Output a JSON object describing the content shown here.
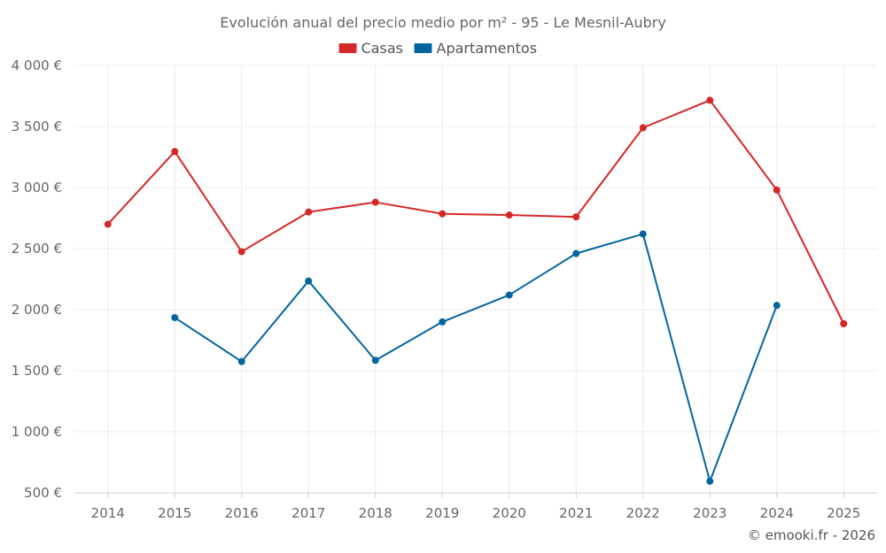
{
  "chart_data": {
    "type": "line",
    "title": "Evolución anual del precio medio por m² - 95 - Le Mesnil-Aubry",
    "categories": [
      "2014",
      "2015",
      "2016",
      "2017",
      "2018",
      "2019",
      "2020",
      "2021",
      "2022",
      "2023",
      "2024",
      "2025"
    ],
    "series": [
      {
        "name": "Casas",
        "color": "#d62728",
        "values": [
          2700,
          3295,
          2475,
          2800,
          2880,
          2785,
          2775,
          2760,
          3490,
          3715,
          2980,
          1885
        ]
      },
      {
        "name": "Apartamentos",
        "color": "#03659e",
        "values": [
          null,
          1935,
          1575,
          2235,
          1585,
          1900,
          2120,
          2460,
          2620,
          595,
          2035,
          null
        ]
      }
    ],
    "ylim": [
      500,
      4000
    ],
    "yticks": [
      500,
      1000,
      1500,
      2000,
      2500,
      3000,
      3500,
      4000
    ],
    "ytick_labels": [
      "500 €",
      "1 000 €",
      "1 500 €",
      "2 000 €",
      "2 500 €",
      "3 000 €",
      "3 500 €",
      "4 000 €"
    ],
    "grid": true,
    "legend_position": "top-center",
    "credit": "© emooki.fr - 2026"
  }
}
